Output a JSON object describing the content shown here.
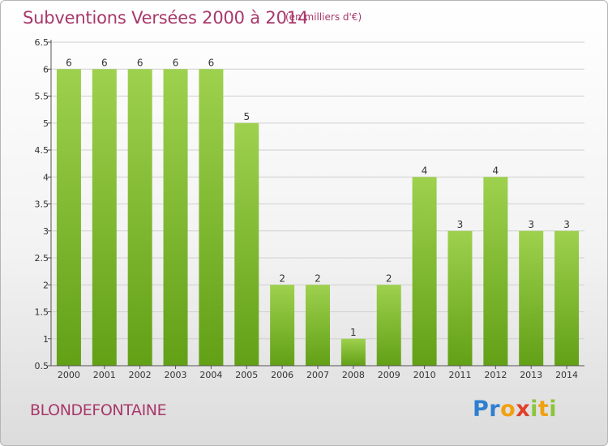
{
  "header": {
    "title": "Subventions Versées 2000 à 2014",
    "unit": "(en milliers d'€)"
  },
  "footer": {
    "commune": "BLONDEFONTAINE",
    "logo_text": "Proxiti"
  },
  "colors": {
    "title": "#a8386a",
    "bar_top": "#9ed14e",
    "bar_bottom": "#62a016",
    "grid": "#d0d0d0",
    "axis": "#555555"
  },
  "chart_data": {
    "type": "bar",
    "title": "Subventions Versées 2000 à 2014",
    "xlabel": "",
    "ylabel": "",
    "categories": [
      "2000",
      "2001",
      "2002",
      "2003",
      "2004",
      "2005",
      "2006",
      "2007",
      "2008",
      "2009",
      "2010",
      "2011",
      "2012",
      "2013",
      "2014"
    ],
    "values": [
      6,
      6,
      6,
      6,
      6,
      5,
      2,
      2,
      1,
      2,
      4,
      3,
      4,
      3,
      3
    ],
    "ylim": [
      0.5,
      6.5
    ],
    "yticks": [
      "0.5",
      "1",
      "1.5",
      "2",
      "2.5",
      "3",
      "3.5",
      "4",
      "4.5",
      "5",
      "5.5",
      "6",
      "6.5"
    ],
    "grid": true,
    "legend": "none"
  }
}
